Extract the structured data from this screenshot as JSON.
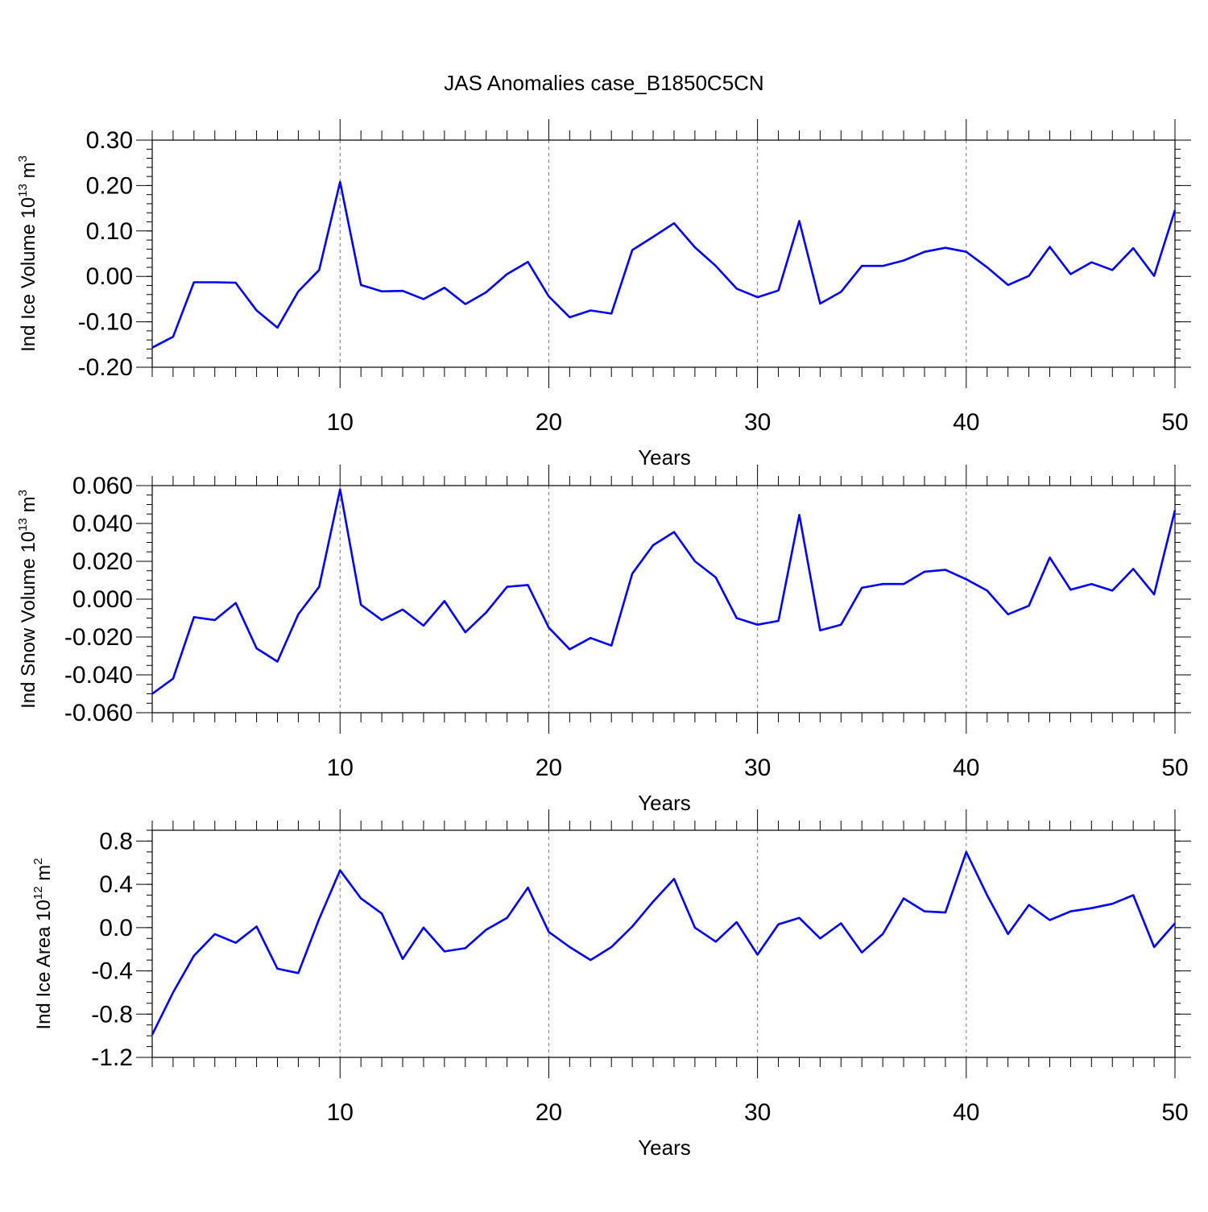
{
  "title": "JAS Anomalies case_B1850C5CN",
  "chart_data": [
    {
      "type": "line",
      "ylabel": {
        "prefix": "Ind Ice Volume 10",
        "exp": "13",
        "unit": " m",
        "unit_exp": "3"
      },
      "xlabel": "Years",
      "xlim": [
        1,
        50
      ],
      "ylim": [
        -0.2,
        0.3
      ],
      "x_ticks": [
        10,
        20,
        30,
        40,
        50
      ],
      "y_ticks": [
        -0.2,
        -0.1,
        0.0,
        0.1,
        0.2,
        0.3
      ],
      "y_tick_labels": [
        "-0.20",
        "-0.10",
        "0.00",
        "0.10",
        "0.20",
        "0.30"
      ],
      "y_minor_step": 0.02,
      "grid": "vertical dashed at major x ticks",
      "line_color": "#0000ff",
      "x": [
        1,
        2,
        3,
        4,
        5,
        6,
        7,
        8,
        9,
        10,
        11,
        12,
        13,
        14,
        15,
        16,
        17,
        18,
        19,
        20,
        21,
        22,
        23,
        24,
        25,
        26,
        27,
        28,
        29,
        30,
        31,
        32,
        33,
        34,
        35,
        36,
        37,
        38,
        39,
        40,
        41,
        42,
        43,
        44,
        45,
        46,
        47,
        48,
        49,
        50
      ],
      "values": [
        -0.157,
        -0.133,
        -0.013,
        -0.013,
        -0.014,
        -0.075,
        -0.113,
        -0.033,
        0.014,
        0.208,
        -0.019,
        -0.033,
        -0.032,
        -0.05,
        -0.025,
        -0.061,
        -0.035,
        0.005,
        0.032,
        -0.044,
        -0.09,
        -0.075,
        -0.082,
        0.058,
        0.087,
        0.117,
        0.064,
        0.023,
        -0.027,
        -0.046,
        -0.031,
        0.122,
        -0.06,
        -0.034,
        0.023,
        0.023,
        0.035,
        0.054,
        0.063,
        0.054,
        0.02,
        -0.019,
        0.001,
        0.065,
        0.005,
        0.031,
        0.014,
        0.062,
        0.001,
        0.146
      ]
    },
    {
      "type": "line",
      "ylabel": {
        "prefix": "Ind Snow Volume 10",
        "exp": "13",
        "unit": " m",
        "unit_exp": "3"
      },
      "xlabel": "Years",
      "xlim": [
        1,
        50
      ],
      "ylim": [
        -0.06,
        0.06
      ],
      "x_ticks": [
        10,
        20,
        30,
        40,
        50
      ],
      "y_ticks": [
        -0.06,
        -0.04,
        -0.02,
        0.0,
        0.02,
        0.04,
        0.06
      ],
      "y_tick_labels": [
        "-0.060",
        "-0.040",
        "-0.020",
        "0.000",
        "0.020",
        "0.040",
        "0.060"
      ],
      "y_minor_step": 0.005,
      "grid": "vertical dashed at major x ticks",
      "line_color": "#0000ff",
      "x": [
        1,
        2,
        3,
        4,
        5,
        6,
        7,
        8,
        9,
        10,
        11,
        12,
        13,
        14,
        15,
        16,
        17,
        18,
        19,
        20,
        21,
        22,
        23,
        24,
        25,
        26,
        27,
        28,
        29,
        30,
        31,
        32,
        33,
        34,
        35,
        36,
        37,
        38,
        39,
        40,
        41,
        42,
        43,
        44,
        45,
        46,
        47,
        48,
        49,
        50
      ],
      "values": [
        -0.05,
        -0.042,
        -0.0095,
        -0.011,
        -0.002,
        -0.026,
        -0.033,
        -0.008,
        0.0065,
        0.058,
        -0.003,
        -0.011,
        -0.0055,
        -0.014,
        -0.001,
        -0.0175,
        -0.007,
        0.0065,
        0.0075,
        -0.015,
        -0.0265,
        -0.0205,
        -0.0245,
        0.0135,
        0.0285,
        0.0355,
        0.02,
        0.0115,
        -0.01,
        -0.0135,
        -0.0115,
        0.0445,
        -0.0165,
        -0.0135,
        0.006,
        0.008,
        0.008,
        0.0145,
        0.0155,
        0.0105,
        0.0045,
        -0.008,
        -0.0035,
        0.022,
        0.005,
        0.008,
        0.0045,
        0.016,
        0.0025,
        0.047
      ]
    },
    {
      "type": "line",
      "ylabel": {
        "prefix": "Ind Ice Area 10",
        "exp": "12",
        "unit": " m",
        "unit_exp": "2"
      },
      "xlabel": "Years",
      "xlim": [
        1,
        50
      ],
      "ylim": [
        -1.2,
        0.9
      ],
      "x_ticks": [
        10,
        20,
        30,
        40,
        50
      ],
      "y_ticks": [
        -1.2,
        -0.8,
        -0.4,
        0.0,
        0.4,
        0.8
      ],
      "y_tick_labels": [
        "-1.2",
        "-0.8",
        "-0.4",
        "0.0",
        "0.4",
        "0.8"
      ],
      "y_minor_step": 0.1,
      "grid": "vertical dashed at major x ticks",
      "line_color": "#0000ff",
      "x": [
        1,
        2,
        3,
        4,
        5,
        6,
        7,
        8,
        9,
        10,
        11,
        12,
        13,
        14,
        15,
        16,
        17,
        18,
        19,
        20,
        21,
        22,
        23,
        24,
        25,
        26,
        27,
        28,
        29,
        30,
        31,
        32,
        33,
        34,
        35,
        36,
        37,
        38,
        39,
        40,
        41,
        42,
        43,
        44,
        45,
        46,
        47,
        48,
        49,
        50
      ],
      "values": [
        -0.99,
        -0.6,
        -0.26,
        -0.06,
        -0.14,
        0.01,
        -0.38,
        -0.42,
        0.08,
        0.53,
        0.27,
        0.13,
        -0.29,
        0.0,
        -0.22,
        -0.19,
        -0.02,
        0.09,
        0.37,
        -0.04,
        -0.18,
        -0.3,
        -0.18,
        0.01,
        0.24,
        0.45,
        0.0,
        -0.13,
        0.05,
        -0.25,
        0.03,
        0.09,
        -0.1,
        0.04,
        -0.23,
        -0.06,
        0.27,
        0.15,
        0.14,
        0.7,
        0.3,
        -0.06,
        0.21,
        0.07,
        0.15,
        0.18,
        0.22,
        0.3,
        -0.18,
        0.04
      ]
    }
  ]
}
